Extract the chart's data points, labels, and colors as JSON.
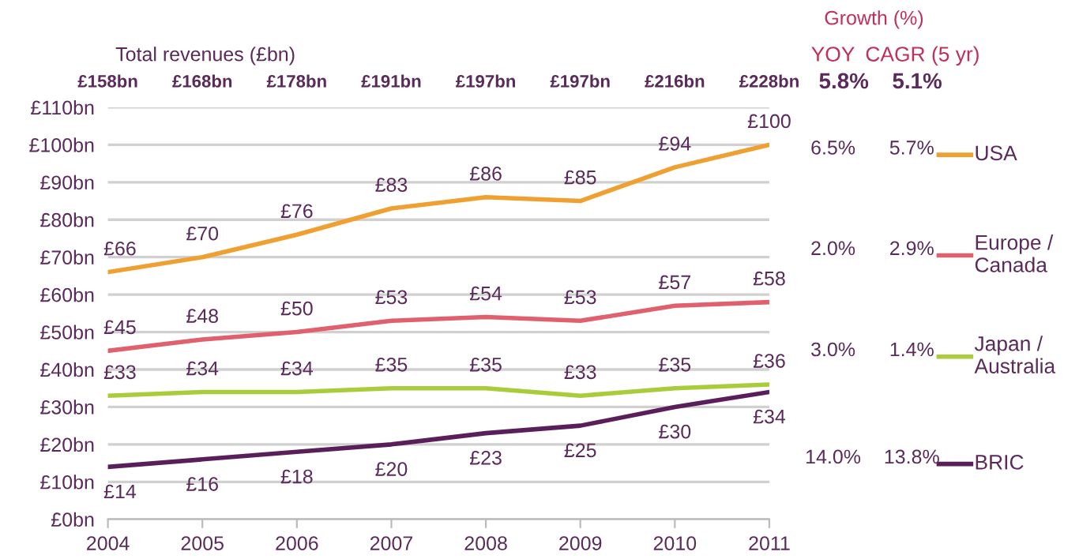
{
  "chart_data": {
    "type": "line",
    "title": "Total revenues (£bn)",
    "x": [
      2004,
      2005,
      2006,
      2007,
      2008,
      2009,
      2010,
      2011
    ],
    "series": [
      {
        "name": "USA",
        "color": "#f0a030",
        "values": [
          66,
          70,
          76,
          83,
          86,
          85,
          94,
          100
        ],
        "value_labels": [
          "£66",
          "£70",
          "£76",
          "£83",
          "£86",
          "£85",
          "£94",
          "£100"
        ]
      },
      {
        "name": "Europe / Canada",
        "color": "#e0606e",
        "values": [
          45,
          48,
          50,
          53,
          54,
          53,
          57,
          58
        ],
        "value_labels": [
          "£45",
          "£48",
          "£50",
          "£53",
          "£54",
          "£53",
          "£57",
          "£58"
        ]
      },
      {
        "name": "Japan / Australia",
        "color": "#a8cc3a",
        "values": [
          33,
          34,
          34,
          35,
          35,
          33,
          35,
          36
        ],
        "value_labels": [
          "£33",
          "£34",
          "£34",
          "£35",
          "£35",
          "£33",
          "£35",
          "£36"
        ]
      },
      {
        "name": "BRIC",
        "color": "#5a1f5a",
        "values": [
          14,
          16,
          18,
          20,
          23,
          25,
          30,
          34
        ],
        "value_labels": [
          "£14",
          "£16",
          "£18",
          "£20",
          "£23",
          "£25",
          "£30",
          "£34"
        ]
      }
    ],
    "annotations": [
      "£158bn",
      "£168bn",
      "£178bn",
      "£191bn",
      "£197bn",
      "£197bn",
      "£216bn",
      "£228bn",
      "Growth (%)",
      "YOY",
      "CAGR (5 yr)",
      "5.8%",
      "5.1%",
      "6.5%",
      "5.7%",
      "2.0%",
      "2.9%",
      "3.0%",
      "1.4%",
      "14.0%",
      "13.8%"
    ],
    "xlim": [
      2004,
      2011
    ],
    "xticks": [
      2004,
      2005,
      2006,
      2007,
      2008,
      2009,
      2010,
      2011
    ],
    "ylim": [
      0,
      110
    ],
    "yticks": [
      {
        "value": 0,
        "label": "£0bn"
      },
      {
        "value": 10,
        "label": "£10bn"
      },
      {
        "value": 20,
        "label": "£20bn"
      },
      {
        "value": 30,
        "label": "£30bn"
      },
      {
        "value": 40,
        "label": "£40bn"
      },
      {
        "value": 50,
        "label": "£50bn"
      },
      {
        "value": 60,
        "label": "£60bn"
      },
      {
        "value": 70,
        "label": "£70bn"
      },
      {
        "value": 80,
        "label": "£80bn"
      },
      {
        "value": 90,
        "label": "£90bn"
      },
      {
        "value": 100,
        "label": "£100bn"
      },
      {
        "value": 110,
        "label": "£110bn"
      }
    ],
    "grid": "y",
    "legend": "right",
    "marker": "none",
    "line_style": "solid"
  }
}
